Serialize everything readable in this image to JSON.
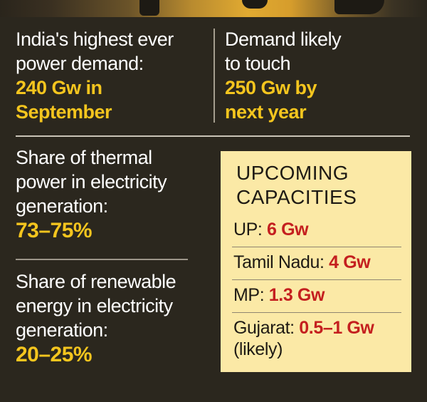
{
  "demand": {
    "highest_label": "India's highest ever power demand:",
    "highest_label_l1": "India's highest ever",
    "highest_label_l2": "power demand:",
    "highest_value_l1": "240 Gw in",
    "highest_value_l2": "September",
    "likely_label_l1": "Demand likely",
    "likely_label_l2": "to touch",
    "likely_value_l1": "250 Gw by",
    "likely_value_l2": "next year"
  },
  "thermal": {
    "label_l1": "Share of thermal",
    "label_l2": "power in electricity",
    "label_l3": "generation:",
    "value": "73–75%"
  },
  "renewable": {
    "label_l1": "Share of renewable",
    "label_l2": "energy in electricity",
    "label_l3": "generation:",
    "value": "20–25%"
  },
  "upcoming": {
    "title_l1": "UPCOMING",
    "title_l2": "CAPACITIES",
    "items": [
      {
        "state": "UP:",
        "value": "6 Gw",
        "note": ""
      },
      {
        "state": "Tamil Nadu:",
        "value": "4 Gw",
        "note": ""
      },
      {
        "state": "MP:",
        "value": "1.3 Gw",
        "note": ""
      },
      {
        "state": "Gujarat:",
        "value": "0.5–1 Gw",
        "note": "(likely)"
      }
    ]
  },
  "colors": {
    "background": "#2b271e",
    "accent_yellow": "#f4c51e",
    "box_bg": "#fbe9a6",
    "value_red": "#c41f1f"
  }
}
